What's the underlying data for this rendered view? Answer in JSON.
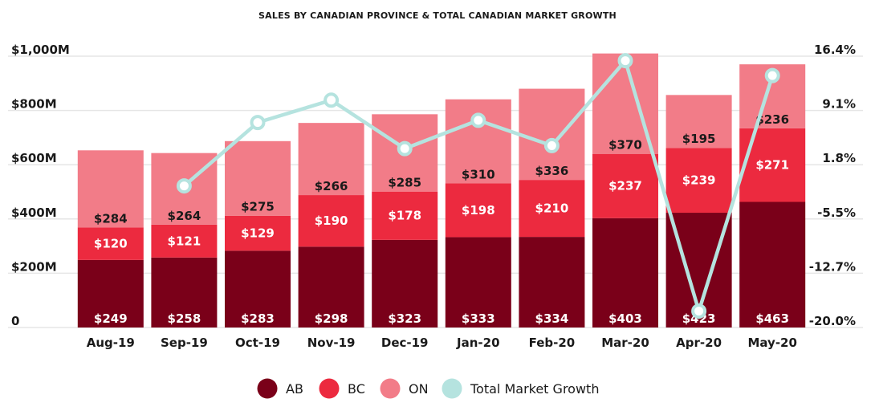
{
  "chart_data": {
    "type": "bar",
    "title": "SALES BY CANADIAN PROVINCE & TOTAL CANADIAN MARKET GROWTH",
    "categories": [
      "Aug-19",
      "Sep-19",
      "Oct-19",
      "Nov-19",
      "Dec-19",
      "Jan-20",
      "Feb-20",
      "Mar-20",
      "Apr-20",
      "May-20"
    ],
    "stacked": true,
    "series": [
      {
        "name": "AB",
        "color": "#7a0019",
        "label_color": "#ffffff",
        "values": [
          249,
          258,
          283,
          298,
          323,
          333,
          334,
          403,
          423,
          463
        ],
        "labels": [
          "$249",
          "$258",
          "$283",
          "$298",
          "$323",
          "$333",
          "$334",
          "$403",
          "$423",
          "$463"
        ]
      },
      {
        "name": "BC",
        "color": "#ec2a3f",
        "label_color": "#ffffff",
        "values": [
          120,
          121,
          129,
          190,
          178,
          198,
          210,
          237,
          239,
          271
        ],
        "labels": [
          "$120",
          "$121",
          "$129",
          "$190",
          "$178",
          "$198",
          "$210",
          "$237",
          "$239",
          "$271"
        ]
      },
      {
        "name": "ON",
        "color": "#f27c88",
        "label_color": "#1a1a1a",
        "values": [
          284,
          264,
          275,
          266,
          285,
          310,
          336,
          370,
          195,
          236
        ],
        "labels": [
          "$284",
          "$264",
          "$275",
          "$266",
          "$285",
          "$310",
          "$336",
          "$370",
          "$195",
          "$236"
        ]
      }
    ],
    "line_series": {
      "name": "Total Market Growth",
      "color": "#b5e3df",
      "axis": "right",
      "values": [
        null,
        -1.0,
        7.5,
        10.5,
        4.0,
        7.8,
        4.4,
        15.8,
        -17.8,
        13.8
      ]
    },
    "ylim": [
      0,
      1000
    ],
    "yticks": [
      "0",
      "$200M",
      "$400M",
      "$600M",
      "$800M",
      "$1,000M"
    ],
    "y2lim": [
      -20.0,
      16.4
    ],
    "y2ticks": [
      "-20.0%",
      "-12.7%",
      "-5.5%",
      "1.8%",
      "9.1%",
      "16.4%"
    ],
    "grid": true,
    "legend": {
      "position": "bottom",
      "items": [
        {
          "label": "AB",
          "color": "#7a0019"
        },
        {
          "label": "BC",
          "color": "#ec2a3f"
        },
        {
          "label": "ON",
          "color": "#f27c88"
        },
        {
          "label": "Total Market Growth",
          "color": "#b5e3df"
        }
      ]
    }
  }
}
